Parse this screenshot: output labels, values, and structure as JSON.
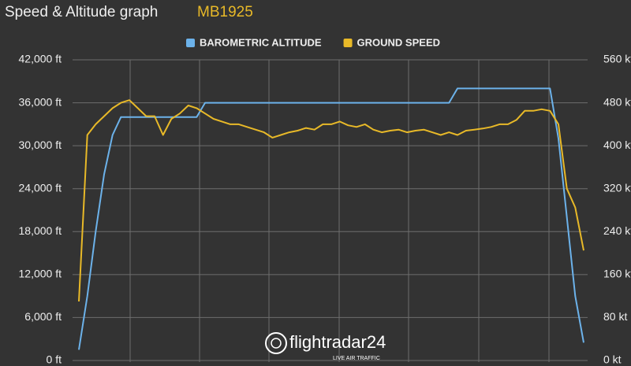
{
  "chart_data": {
    "type": "line",
    "title": "Speed & Altitude graph",
    "subtitle": "MB1925",
    "watermark": {
      "brand": "flightradar24",
      "tagline": "LIVE AIR TRAFFIC"
    },
    "series": [
      {
        "name": "BAROMETRIC ALTITUDE",
        "color": "#6cb2ea",
        "axis": "y",
        "values": [
          1500,
          9000,
          18000,
          26000,
          31500,
          34000,
          34000,
          34000,
          34000,
          34000,
          34000,
          34000,
          34000,
          34000,
          34000,
          36000,
          36000,
          36000,
          36000,
          36000,
          36000,
          36000,
          36000,
          36000,
          36000,
          36000,
          36000,
          36000,
          36000,
          36000,
          36000,
          36000,
          36000,
          36000,
          36000,
          36000,
          36000,
          36000,
          36000,
          36000,
          36000,
          36000,
          36000,
          36000,
          36000,
          38000,
          38000,
          38000,
          38000,
          38000,
          38000,
          38000,
          38000,
          38000,
          38000,
          38000,
          38000,
          31000,
          20000,
          9000,
          2500
        ]
      },
      {
        "name": "GROUND SPEED",
        "color": "#e8b928",
        "axis": "y2",
        "values": [
          110,
          420,
          440,
          455,
          470,
          480,
          485,
          470,
          455,
          455,
          420,
          450,
          460,
          475,
          470,
          460,
          450,
          445,
          440,
          440,
          435,
          430,
          425,
          415,
          420,
          425,
          428,
          433,
          430,
          440,
          440,
          445,
          438,
          435,
          440,
          430,
          425,
          428,
          430,
          425,
          428,
          430,
          425,
          420,
          425,
          420,
          428,
          430,
          432,
          435,
          440,
          440,
          448,
          465,
          465,
          468,
          465,
          440,
          320,
          285,
          205
        ]
      }
    ],
    "ylim": [
      0,
      42000
    ],
    "yticks": [
      {
        "value": 0,
        "label": "0 ft"
      },
      {
        "value": 6000,
        "label": "6,000 ft"
      },
      {
        "value": 12000,
        "label": "12,000 ft"
      },
      {
        "value": 18000,
        "label": "18,000 ft"
      },
      {
        "value": 24000,
        "label": "24,000 ft"
      },
      {
        "value": 30000,
        "label": "30,000 ft"
      },
      {
        "value": 36000,
        "label": "36,000 ft"
      },
      {
        "value": 42000,
        "label": "42,000 ft"
      }
    ],
    "y2lim": [
      0,
      560
    ],
    "y2ticks": [
      {
        "value": 0,
        "label": "0 kt"
      },
      {
        "value": 80,
        "label": "80 kt"
      },
      {
        "value": 160,
        "label": "160 kt"
      },
      {
        "value": 240,
        "label": "240 kt"
      },
      {
        "value": 320,
        "label": "320 kt"
      },
      {
        "value": 400,
        "label": "400 kt"
      },
      {
        "value": 480,
        "label": "480 kt"
      },
      {
        "value": 560,
        "label": "560 kt"
      }
    ],
    "grid": true
  }
}
